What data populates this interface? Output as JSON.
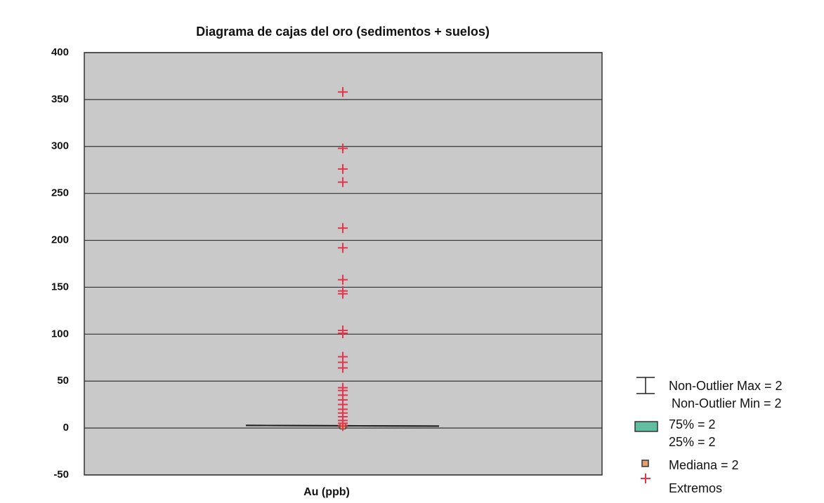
{
  "chart_data": {
    "type": "box",
    "title": "Diagrama de cajas del oro (sedimentos + suelos)",
    "categories": [
      "Au (ppb)"
    ],
    "ylim": [
      -50,
      400
    ],
    "yticks": [
      -50,
      0,
      50,
      100,
      150,
      200,
      250,
      300,
      350,
      400
    ],
    "grid": true,
    "box": {
      "whisker_high": 2,
      "whisker_low": 2,
      "q3": 2,
      "q1": 2,
      "median": 2
    },
    "outliers": [
      358,
      298,
      276,
      262,
      213,
      192,
      158,
      146,
      143,
      104,
      101,
      76,
      70,
      64,
      43,
      40,
      35,
      30,
      25,
      20,
      16,
      12,
      8,
      5,
      2
    ],
    "box_color": "#5fbfa0",
    "median_color": "#e0a070",
    "outlier_color": "#e8334a",
    "legend_labels": [
      "Non-Outlier Max = 2",
      "Non-Outlier Min = 2",
      "75% = 2",
      "25% = 2",
      "Mediana = 2",
      "Extremos"
    ],
    "legend": "right"
  }
}
